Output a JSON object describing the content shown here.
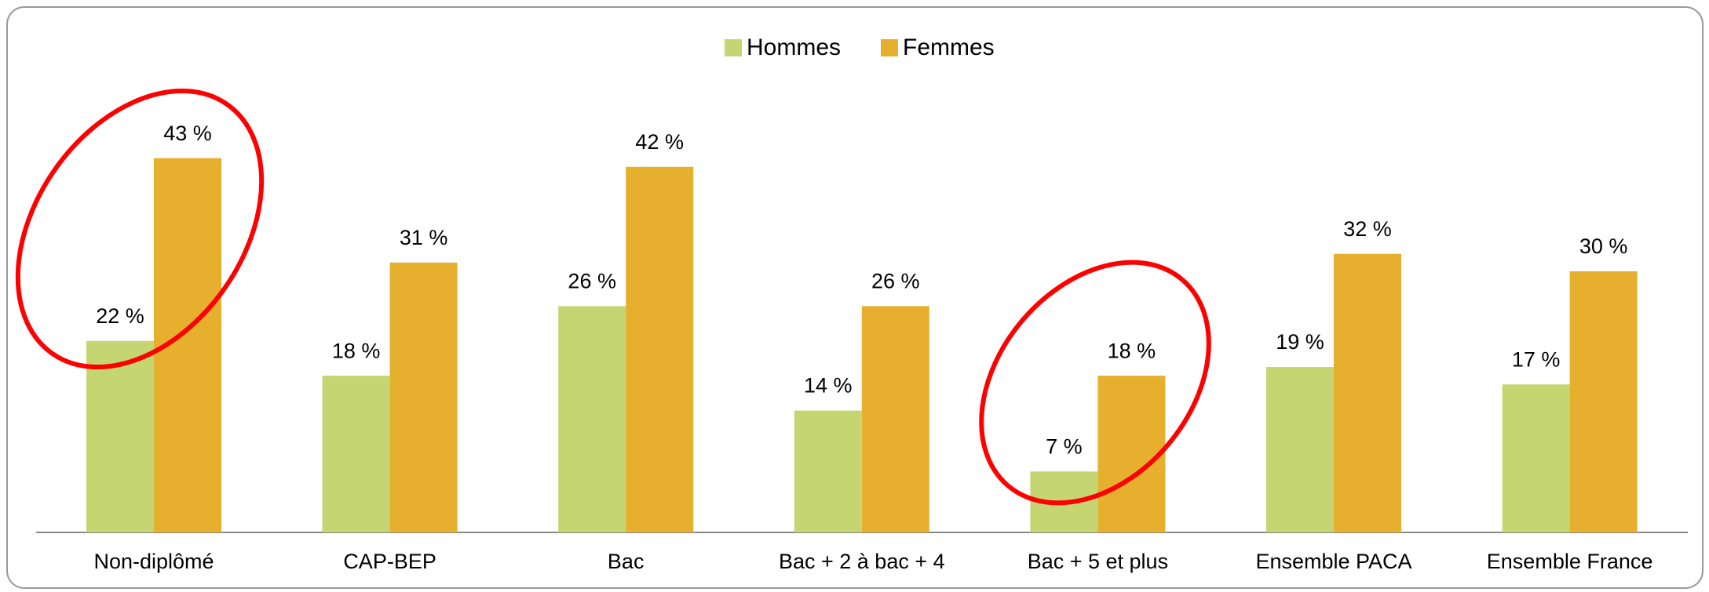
{
  "chart_data": {
    "type": "bar",
    "categories": [
      "Non-diplômé",
      "CAP-BEP",
      "Bac",
      "Bac + 2 à bac + 4",
      "Bac + 5 et plus",
      "Ensemble PACA",
      "Ensemble France"
    ],
    "series": [
      {
        "name": "Hommes",
        "color": "#c4d572",
        "values": [
          22,
          18,
          26,
          14,
          7,
          19,
          17
        ],
        "value_labels": [
          "22 %",
          "18 %",
          "26 %",
          "14 %",
          "7 %",
          "19 %",
          "17 %"
        ]
      },
      {
        "name": "Femmes",
        "color": "#e6b02e",
        "values": [
          43,
          31,
          42,
          26,
          18,
          32,
          30
        ],
        "value_labels": [
          "43 %",
          "31 %",
          "42 %",
          "26 %",
          "18 %",
          "32 %",
          "30 %"
        ]
      }
    ]
  }
}
